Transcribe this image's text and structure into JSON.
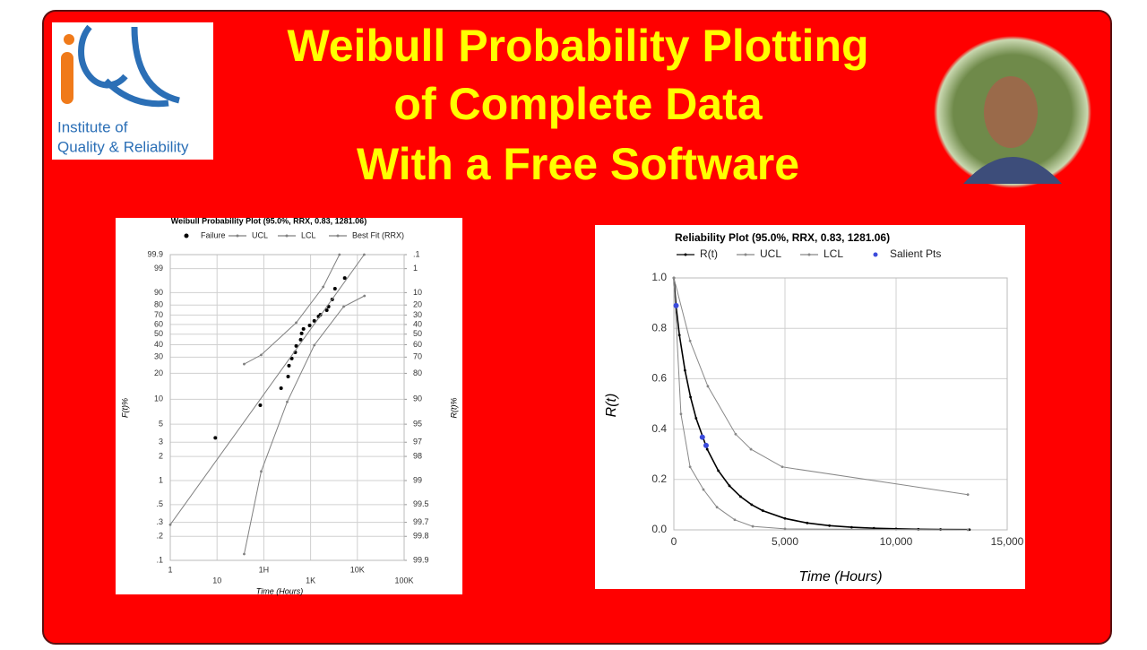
{
  "header": {
    "title": [
      "Weibull Probability Plotting",
      "of Complete Data",
      "With a Free Software"
    ]
  },
  "logo": {
    "text": [
      "Institute of",
      "Quality & Reliability"
    ]
  },
  "chart_data": [
    {
      "type": "probability",
      "title": "Weibull Probability Plot (95.0%, RRX, 0.83, 1281.06)",
      "x_label": "Time (Hours)",
      "y_label": "F(t)%",
      "y2_label": "R(t)%",
      "xscale": "log",
      "yscale": "weibull",
      "y2scale": "weibull-reliability",
      "grid": true,
      "xlim": [
        1,
        100000
      ],
      "xticks": [
        1,
        10,
        {
          "value": 100,
          "label": "1H"
        },
        {
          "value": 1000,
          "label": "1K"
        },
        {
          "value": 10000,
          "label": "10K"
        },
        {
          "value": 100000,
          "label": "100K"
        }
      ],
      "ylim": [
        0.1,
        99.9
      ],
      "yticks": [
        {
          "value": 0.1,
          "label": ".1"
        },
        {
          "value": 0.2,
          "label": ".2"
        },
        {
          "value": 0.3,
          "label": ".3"
        },
        {
          "value": 0.5,
          "label": ".5"
        },
        1,
        2,
        3,
        5,
        10,
        20,
        30,
        40,
        50,
        60,
        70,
        80,
        90,
        99,
        99.9
      ],
      "y2lim": [
        99.9,
        0.1
      ],
      "y2ticks": [
        99.9,
        99.8,
        99.7,
        99.5,
        99,
        98,
        97,
        95,
        90,
        80,
        70,
        60,
        50,
        40,
        30,
        20,
        10,
        1,
        {
          "value": 0.1,
          "label": ".1"
        }
      ],
      "series": [
        {
          "name": "Failure",
          "color": "#000000",
          "mode": "markers",
          "x": [
            9.2,
            84,
            234,
            331,
            345,
            396,
            470,
            493,
            614,
            643,
            705,
            955,
            1200,
            1480,
            1620,
            2220,
            2420,
            2900,
            3320,
            5370
          ],
          "values": [
            3.4,
            8.5,
            13.5,
            18.4,
            24.3,
            29,
            33.6,
            38.9,
            44.6,
            50.7,
            55.3,
            59,
            63.8,
            68.5,
            70.4,
            75,
            78.5,
            84.9,
            92.4,
            97
          ]
        },
        {
          "name": "UCL",
          "color": "#808080",
          "mode": "lines+markers",
          "x": [
            38,
            88,
            493,
            1860,
            4140
          ],
          "values": [
            25.3,
            31.6,
            61.9,
            93.4,
            99.9
          ]
        },
        {
          "name": "LCL",
          "color": "#808080",
          "mode": "lines+markers",
          "x": [
            38,
            88,
            316,
            1200,
            5100,
            14200
          ],
          "values": [
            0.12,
            1.3,
            9.3,
            39.6,
            78.5,
            87.7
          ]
        },
        {
          "name": "Best Fit (RRX)",
          "color": "#808080",
          "mode": "lines+markers",
          "x": [
            1,
            14000
          ],
          "values": [
            0.28,
            99.9
          ]
        }
      ]
    },
    {
      "type": "line",
      "title": "Reliability Plot (95.0%, RRX, 0.83, 1281.06)",
      "x_label": "Time (Hours)",
      "y_label": "R(t)",
      "xscale": "linear",
      "yscale": "linear",
      "grid": true,
      "xlim": [
        0,
        15000
      ],
      "xticks": [
        0,
        {
          "value": 5000,
          "label": "5,000"
        },
        {
          "value": 10000,
          "label": "10,000"
        },
        {
          "value": 15000,
          "label": "15,000"
        }
      ],
      "ylim": [
        0,
        1
      ],
      "yticks": [
        {
          "value": 0,
          "label": "0.0"
        },
        0.2,
        0.4,
        0.6,
        0.8,
        {
          "value": 1,
          "label": "1.0"
        }
      ],
      "series": [
        {
          "name": "R(t)",
          "color": "#000000",
          "mode": "lines+markers",
          "x": [
            0,
            100,
            250,
            500,
            750,
            1000,
            1500,
            2000,
            2500,
            3000,
            3500,
            4000,
            5000,
            6000,
            7000,
            8000,
            9000,
            10000,
            11000,
            12000,
            13300
          ],
          "values": [
            1,
            0.886,
            0.773,
            0.633,
            0.527,
            0.443,
            0.32,
            0.235,
            0.175,
            0.132,
            0.1,
            0.0763,
            0.0452,
            0.0273,
            0.0167,
            0.0103,
            0.0064,
            0.0041,
            0.0026,
            0.0017,
            0.0009
          ]
        },
        {
          "name": "UCL",
          "color": "#888888",
          "mode": "lines+markers",
          "x": [
            0,
            730,
            1530,
            2780,
            3470,
            4880,
            13230
          ],
          "values": [
            1,
            0.75,
            0.57,
            0.38,
            0.32,
            0.25,
            0.14
          ]
        },
        {
          "name": "LCL",
          "color": "#888888",
          "mode": "lines+markers",
          "x": [
            0,
            320,
            730,
            1330,
            1940,
            2740,
            3550,
            5000,
            13230
          ],
          "values": [
            1,
            0.46,
            0.25,
            0.16,
            0.09,
            0.04,
            0.014,
            0.004,
            0
          ]
        },
        {
          "name": "Salient Pts",
          "color": "#3b4bdb",
          "mode": "markers",
          "x": [
            100,
            1281,
            1450
          ],
          "values": [
            0.89,
            0.368,
            0.335
          ]
        }
      ]
    }
  ]
}
